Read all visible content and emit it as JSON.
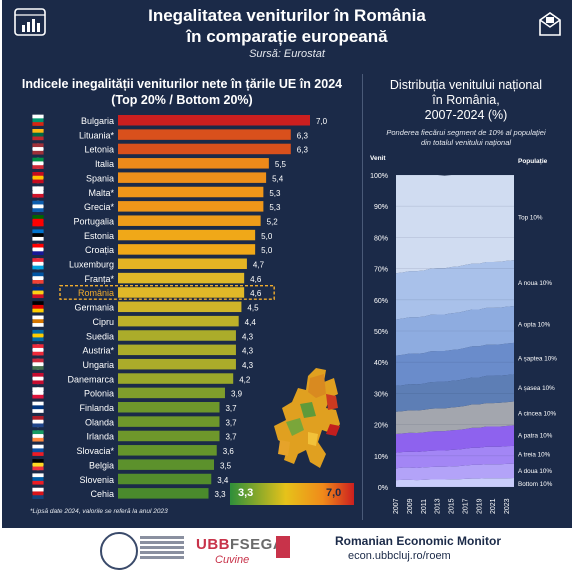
{
  "header": {
    "title_line1": "Inegalitatea veniturilor în România",
    "title_line2": "în comparație europeană",
    "source": "Sursă: Eurostat"
  },
  "left": {
    "title_line1": "Indicele inegalității veniturilor nete în țările UE în 2024",
    "title_line2": "(Top 20% / Bottom 20%)",
    "footnote": "*Lipsă date 2024, valorile se referă la anul 2023",
    "scale_min": "3,3",
    "scale_max": "7,0"
  },
  "right": {
    "title_line1": "Distribuția venitului național",
    "title_line2": "în România,",
    "title_line3": "2007-2024 (%)",
    "subtitle_line1": "Ponderea fiecărui segment de 10% al populației",
    "subtitle_line2": "din totalul venitului național",
    "col_venit": "Venit",
    "col_populatie": "Populație"
  },
  "footer": {
    "org": "Romanian Economic Monitor",
    "url": "econ.ubbcluj.ro/roem",
    "ubb": "UBB",
    "fsega": "FSEGA",
    "signature": "Cuvine"
  },
  "colors": {
    "background": "#1b2a48",
    "highlight": "#f2ad2d",
    "max": "#cc1f1f"
  },
  "chart_data": [
    {
      "type": "bar",
      "orientation": "horizontal",
      "categories": [
        "Bulgaria",
        "Lituania*",
        "Letonia",
        "Italia",
        "Spania",
        "Malta*",
        "Grecia*",
        "Portugalia",
        "Estonia",
        "Croația",
        "Luxemburg",
        "Franța*",
        "România",
        "Germania",
        "Cipru",
        "Suedia",
        "Austria*",
        "Ungaria",
        "Danemarca",
        "Polonia",
        "Finlanda",
        "Olanda",
        "Irlanda",
        "Slovacia*",
        "Belgia",
        "Slovenia",
        "Cehia"
      ],
      "values": [
        7.0,
        6.3,
        6.3,
        5.5,
        5.4,
        5.3,
        5.3,
        5.2,
        5.0,
        5.0,
        4.7,
        4.6,
        4.6,
        4.5,
        4.4,
        4.3,
        4.3,
        4.3,
        4.2,
        3.9,
        3.7,
        3.7,
        3.7,
        3.6,
        3.5,
        3.4,
        3.3
      ],
      "labels": [
        "7,0",
        "6,3",
        "6,3",
        "5,5",
        "5,4",
        "5,3",
        "5,3",
        "5,2",
        "5,0",
        "5,0",
        "4,7",
        "4,6",
        "4,6",
        "4,5",
        "4,4",
        "4,3",
        "4,3",
        "4,3",
        "4,2",
        "3,9",
        "3,7",
        "3,7",
        "3,7",
        "3,6",
        "3,5",
        "3,4",
        "3,3"
      ],
      "highlight": "România",
      "xlim": [
        0,
        7.0
      ]
    },
    {
      "type": "area",
      "stacked": true,
      "x": [
        "2007",
        "2008",
        "2009",
        "2010",
        "2011",
        "2012",
        "2013",
        "2014",
        "2015",
        "2016",
        "2017",
        "2018",
        "2019",
        "2020",
        "2021",
        "2022",
        "2023",
        "2024"
      ],
      "y_ticks": [
        "0%",
        "10%",
        "20%",
        "30%",
        "40%",
        "50%",
        "60%",
        "70%",
        "80%",
        "90%",
        "100%"
      ],
      "ylim": [
        0,
        100
      ],
      "series": [
        {
          "name": "Bottom 10%",
          "color": "#c9cdfb",
          "values": [
            2.2,
            2.3,
            2.3,
            2.2,
            2.3,
            2.4,
            2.4,
            2.4,
            2.5,
            2.5,
            2.6,
            2.7,
            2.7,
            2.8,
            2.8,
            2.8,
            2.8,
            2.9
          ]
        },
        {
          "name": "A doua 10%",
          "color": "#b3a3f8",
          "values": [
            3.8,
            3.9,
            3.9,
            3.9,
            4.0,
            4.0,
            4.1,
            4.1,
            4.1,
            4.2,
            4.3,
            4.4,
            4.4,
            4.5,
            4.5,
            4.5,
            4.6,
            4.6
          ]
        },
        {
          "name": "A treia 10%",
          "color": "#a386f5",
          "values": [
            5.0,
            5.0,
            5.1,
            5.1,
            5.1,
            5.2,
            5.2,
            5.2,
            5.3,
            5.3,
            5.4,
            5.5,
            5.5,
            5.6,
            5.6,
            5.6,
            5.7,
            5.7
          ]
        },
        {
          "name": "A patra 10%",
          "color": "#8e62ee",
          "values": [
            6.0,
            6.0,
            6.1,
            6.1,
            6.1,
            6.2,
            6.2,
            6.2,
            6.3,
            6.3,
            6.3,
            6.4,
            6.4,
            6.5,
            6.5,
            6.5,
            6.5,
            6.6
          ]
        },
        {
          "name": "A cincea 10%",
          "color": "#a3a6ae",
          "values": [
            7.1,
            7.1,
            7.2,
            7.2,
            7.2,
            7.3,
            7.3,
            7.3,
            7.3,
            7.4,
            7.4,
            7.5,
            7.5,
            7.5,
            7.5,
            7.6,
            7.6,
            7.6
          ]
        },
        {
          "name": "A șasea 10%",
          "color": "#5d7eb5",
          "values": [
            8.3,
            8.3,
            8.4,
            8.4,
            8.4,
            8.5,
            8.5,
            8.5,
            8.5,
            8.5,
            8.6,
            8.6,
            8.6,
            8.7,
            8.7,
            8.7,
            8.7,
            8.7
          ]
        },
        {
          "name": "A șaptea 10%",
          "color": "#6a8ccb",
          "values": [
            9.7,
            9.8,
            9.8,
            9.8,
            9.8,
            9.9,
            9.9,
            9.9,
            9.9,
            9.9,
            10.0,
            10.0,
            10.0,
            10.0,
            10.0,
            10.0,
            10.1,
            10.1
          ]
        },
        {
          "name": "A opta 10%",
          "color": "#8eace0",
          "values": [
            11.6,
            11.6,
            11.6,
            11.7,
            11.7,
            11.7,
            11.7,
            11.7,
            11.8,
            11.8,
            11.8,
            11.8,
            11.8,
            11.8,
            11.8,
            11.8,
            11.8,
            11.8
          ]
        },
        {
          "name": "A noua 10%",
          "color": "#a9c1ea",
          "values": [
            14.8,
            14.8,
            14.8,
            14.8,
            14.8,
            14.8,
            14.8,
            14.8,
            14.8,
            14.8,
            14.8,
            14.7,
            14.7,
            14.7,
            14.7,
            14.7,
            14.7,
            14.7
          ]
        },
        {
          "name": "Top 10%",
          "color": "#d0dcf1",
          "values": [
            31.5,
            31.2,
            30.8,
            30.8,
            30.6,
            30.0,
            29.9,
            29.7,
            29.5,
            29.3,
            28.8,
            28.4,
            28.4,
            27.9,
            27.9,
            27.8,
            27.5,
            27.3
          ]
        }
      ]
    }
  ]
}
